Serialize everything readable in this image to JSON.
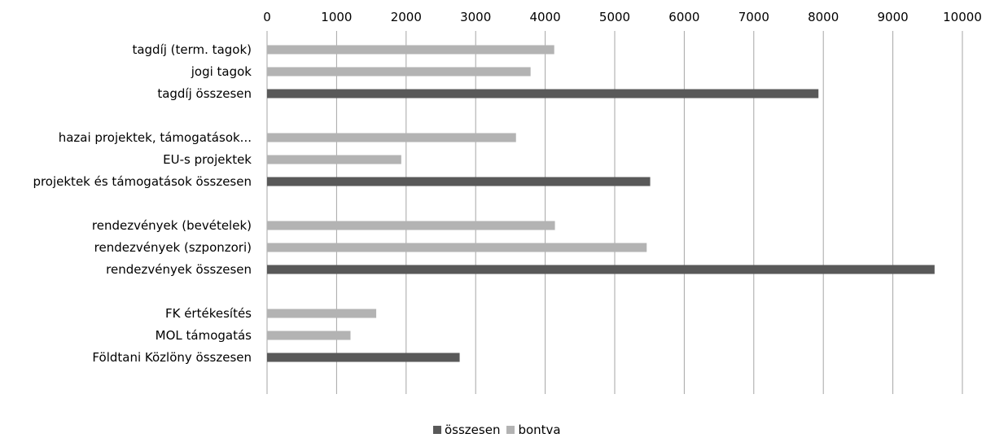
{
  "chart_data": {
    "type": "bar",
    "orientation": "horizontal",
    "xlim": [
      0,
      10000
    ],
    "ticks": [
      0,
      1000,
      2000,
      3000,
      4000,
      5000,
      6000,
      7000,
      8000,
      9000,
      10000
    ],
    "tick_labels": [
      "0",
      "1000",
      "2000",
      "3000",
      "4000",
      "5000",
      "6000",
      "7000",
      "8000",
      "9000",
      "10000"
    ],
    "grid": true,
    "legend_position": "bottom",
    "colors": {
      "osszesen": "#595959",
      "bontva": "#b3b3b3",
      "grid": "#a6a6a6"
    },
    "series": [
      {
        "name": "összesen"
      },
      {
        "name": "bontva"
      }
    ],
    "categories": [
      {
        "label": "tagdíj (term. tagok)",
        "value": 4130,
        "series": "bontva"
      },
      {
        "label": "jogi tagok",
        "value": 3790,
        "series": "bontva"
      },
      {
        "label": "tagdíj összesen",
        "value": 7930,
        "series": "összesen"
      },
      {
        "label": "hazai projektek, támogatások...",
        "value": 3580,
        "series": "bontva"
      },
      {
        "label": "EU-s projektek",
        "value": 1930,
        "series": "bontva"
      },
      {
        "label": "projektek és támogatások összesen",
        "value": 5510,
        "series": "összesen"
      },
      {
        "label": "rendezvények (bevételek)",
        "value": 4140,
        "series": "bontva"
      },
      {
        "label": "rendezvények (szponzori)",
        "value": 5460,
        "series": "bontva"
      },
      {
        "label": "rendezvények összesen",
        "value": 9600,
        "series": "összesen"
      },
      {
        "label": "FK értékesítés",
        "value": 1570,
        "series": "bontva"
      },
      {
        "label": "MOL támogatás",
        "value": 1200,
        "series": "bontva"
      },
      {
        "label": "Földtani Közlöny összesen",
        "value": 2770,
        "series": "összesen"
      }
    ]
  }
}
